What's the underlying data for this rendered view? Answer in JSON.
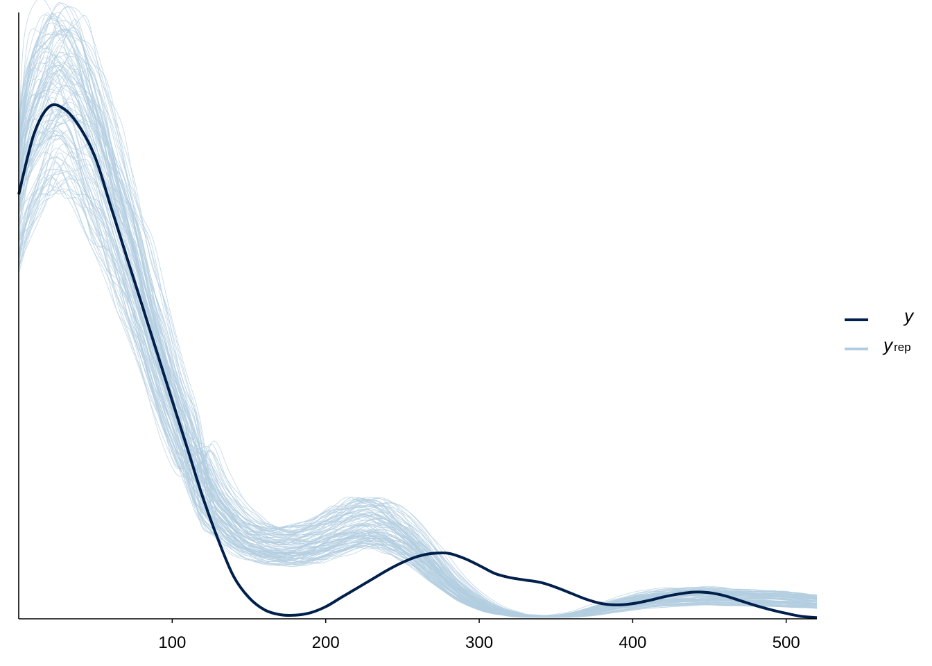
{
  "chart_data": {
    "type": "line",
    "title": "",
    "xlabel": "",
    "ylabel": "",
    "xlim": [
      0,
      520
    ],
    "ylim": [
      0,
      1.0
    ],
    "x_ticks": [
      "100",
      "200",
      "300",
      "400",
      "500"
    ],
    "x_tick_values": [
      100,
      200,
      300,
      400,
      500
    ],
    "y_axis_labels": false,
    "grid": false,
    "legend_position": "right",
    "colors": {
      "y": "#011f4b",
      "yrep": "#b3cde0"
    },
    "series": [
      {
        "name": "y",
        "x": [
          0,
          10,
          20,
          30,
          40,
          50,
          60,
          70,
          80,
          90,
          100,
          110,
          120,
          130,
          140,
          150,
          160,
          170,
          180,
          190,
          200,
          210,
          220,
          230,
          240,
          250,
          260,
          270,
          280,
          290,
          300,
          310,
          320,
          330,
          340,
          350,
          360,
          370,
          380,
          390,
          400,
          410,
          420,
          430,
          440,
          450,
          460,
          470,
          480,
          490,
          500,
          510,
          520
        ],
        "values": [
          0.7,
          0.8,
          0.845,
          0.84,
          0.81,
          0.76,
          0.68,
          0.6,
          0.52,
          0.44,
          0.36,
          0.28,
          0.2,
          0.13,
          0.07,
          0.035,
          0.015,
          0.007,
          0.006,
          0.01,
          0.02,
          0.035,
          0.05,
          0.065,
          0.08,
          0.093,
          0.103,
          0.108,
          0.108,
          0.1,
          0.088,
          0.075,
          0.068,
          0.064,
          0.06,
          0.052,
          0.042,
          0.032,
          0.025,
          0.023,
          0.025,
          0.03,
          0.036,
          0.041,
          0.044,
          0.043,
          0.038,
          0.03,
          0.022,
          0.015,
          0.009,
          0.004,
          0.002
        ]
      },
      {
        "name": "yrep",
        "draws": 100,
        "x": [
          0,
          10,
          20,
          30,
          40,
          50,
          60,
          70,
          80,
          90,
          100,
          110,
          120,
          130,
          140,
          150,
          160,
          170,
          180,
          190,
          200,
          210,
          220,
          230,
          240,
          250,
          260,
          270,
          280,
          290,
          300,
          310,
          320,
          330,
          340,
          350,
          360,
          370,
          380,
          390,
          400,
          410,
          420,
          430,
          440,
          450,
          460,
          470,
          480,
          490,
          500,
          510,
          520
        ],
        "values": [
          0.68,
          0.78,
          0.83,
          0.84,
          0.81,
          0.75,
          0.68,
          0.6,
          0.52,
          0.43,
          0.35,
          0.28,
          0.22,
          0.18,
          0.15,
          0.13,
          0.12,
          0.115,
          0.115,
          0.12,
          0.13,
          0.14,
          0.15,
          0.152,
          0.145,
          0.13,
          0.11,
          0.085,
          0.06,
          0.04,
          0.025,
          0.014,
          0.008,
          0.005,
          0.004,
          0.004,
          0.006,
          0.01,
          0.016,
          0.022,
          0.027,
          0.031,
          0.034,
          0.036,
          0.037,
          0.037,
          0.036,
          0.035,
          0.034,
          0.033,
          0.032,
          0.03,
          0.028
        ]
      }
    ]
  },
  "legend": {
    "items": [
      {
        "label": "y",
        "sub": "",
        "color": "#011f4b"
      },
      {
        "label": "y",
        "sub": "rep",
        "color": "#b3cde0"
      }
    ]
  }
}
